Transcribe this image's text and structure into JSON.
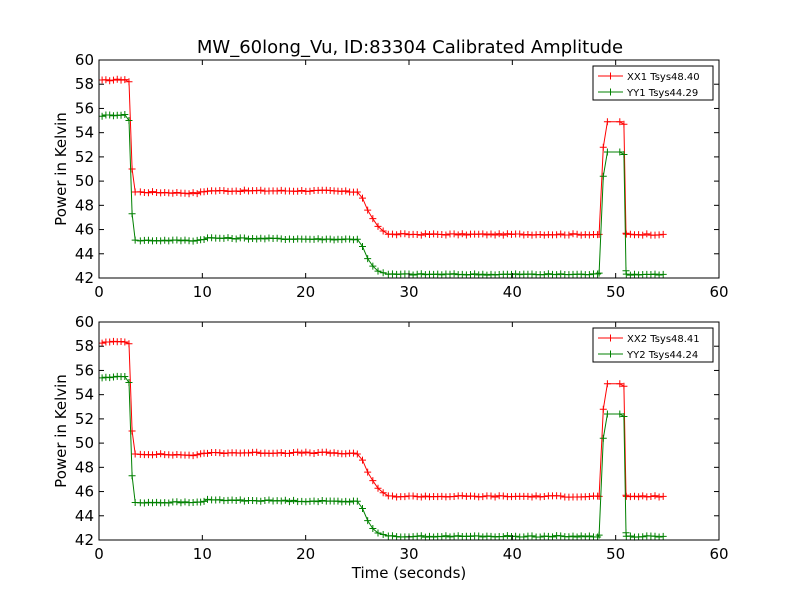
{
  "figure_title": "MW_60long_Vu, ID:83304 Calibrated Amplitude",
  "chart_data": [
    {
      "type": "line",
      "title": "MW_60long_Vu, ID:83304 Calibrated Amplitude",
      "xlabel": "",
      "ylabel": "Power in Kelvin",
      "xlim": [
        0,
        60
      ],
      "ylim": [
        42,
        60
      ],
      "xticks": [
        "0",
        "10",
        "20",
        "30",
        "40",
        "50",
        "60"
      ],
      "yticks": [
        "42",
        "44",
        "46",
        "48",
        "50",
        "52",
        "54",
        "56",
        "58",
        "60"
      ],
      "grid": false,
      "legend_position": "top-right",
      "marker": "+",
      "series": [
        {
          "name": "XX1 Tsys48.40",
          "color": "#ff0000",
          "x": [
            0.3,
            2.5,
            2.9,
            3.2,
            3.5,
            4.0,
            9.5,
            10.5,
            22.0,
            25.0,
            25.5,
            26.0,
            26.5,
            27.0,
            27.5,
            28.0,
            30.0,
            54.6
          ],
          "y": [
            58.3,
            58.4,
            58.2,
            51.0,
            49.1,
            49.1,
            49.0,
            49.2,
            49.2,
            49.1,
            48.6,
            47.6,
            46.9,
            46.3,
            45.9,
            45.6,
            45.6,
            45.6
          ],
          "spike": {
            "x": [
              48.4,
              48.8,
              49.2,
              50.4,
              50.8,
              51.0
            ],
            "y": [
              45.6,
              52.8,
              54.9,
              54.9,
              54.7,
              45.7
            ]
          }
        },
        {
          "name": "YY1 Tsys44.29",
          "color": "#008000",
          "x": [
            0.3,
            2.5,
            2.9,
            3.2,
            3.5,
            4.0,
            9.5,
            10.5,
            22.0,
            25.0,
            25.5,
            26.0,
            26.5,
            27.0,
            27.5,
            28.0,
            30.0,
            54.6
          ],
          "y": [
            55.4,
            55.5,
            55.0,
            47.3,
            45.1,
            45.1,
            45.1,
            45.3,
            45.2,
            45.2,
            44.6,
            43.6,
            43.0,
            42.6,
            42.4,
            42.3,
            42.3,
            42.3
          ],
          "spike": {
            "x": [
              48.4,
              48.8,
              49.2,
              50.4,
              50.8,
              51.0
            ],
            "y": [
              42.4,
              50.4,
              52.4,
              52.4,
              52.2,
              42.6
            ]
          }
        }
      ]
    },
    {
      "type": "line",
      "title": "",
      "xlabel": "Time (seconds)",
      "ylabel": "Power in Kelvin",
      "xlim": [
        0,
        60
      ],
      "ylim": [
        42,
        60
      ],
      "xticks": [
        "0",
        "10",
        "20",
        "30",
        "40",
        "50",
        "60"
      ],
      "yticks": [
        "42",
        "44",
        "46",
        "48",
        "50",
        "52",
        "54",
        "56",
        "58",
        "60"
      ],
      "grid": false,
      "legend_position": "top-right",
      "marker": "+",
      "series": [
        {
          "name": "XX2 Tsys48.41",
          "color": "#ff0000",
          "x": [
            0.3,
            2.5,
            2.9,
            3.2,
            3.5,
            4.0,
            9.5,
            10.5,
            22.0,
            25.0,
            25.5,
            26.0,
            26.5,
            27.0,
            27.5,
            28.0,
            30.0,
            54.6
          ],
          "y": [
            58.3,
            58.4,
            58.2,
            51.0,
            49.1,
            49.1,
            49.0,
            49.2,
            49.2,
            49.1,
            48.6,
            47.6,
            46.9,
            46.3,
            45.9,
            45.6,
            45.6,
            45.6
          ],
          "spike": {
            "x": [
              48.4,
              48.8,
              49.2,
              50.4,
              50.8,
              51.0
            ],
            "y": [
              45.6,
              52.8,
              54.9,
              54.9,
              54.7,
              45.7
            ]
          }
        },
        {
          "name": "YY2 Tsys44.24",
          "color": "#008000",
          "x": [
            0.3,
            2.5,
            2.9,
            3.2,
            3.5,
            4.0,
            9.5,
            10.5,
            22.0,
            25.0,
            25.5,
            26.0,
            26.5,
            27.0,
            27.5,
            28.0,
            30.0,
            54.6
          ],
          "y": [
            55.4,
            55.5,
            55.0,
            47.3,
            45.1,
            45.1,
            45.1,
            45.3,
            45.2,
            45.2,
            44.6,
            43.6,
            43.0,
            42.6,
            42.4,
            42.3,
            42.3,
            42.3
          ],
          "spike": {
            "x": [
              48.4,
              48.8,
              49.2,
              50.4,
              50.8,
              51.0
            ],
            "y": [
              42.4,
              50.4,
              52.4,
              52.4,
              52.2,
              42.6
            ]
          }
        }
      ]
    }
  ]
}
